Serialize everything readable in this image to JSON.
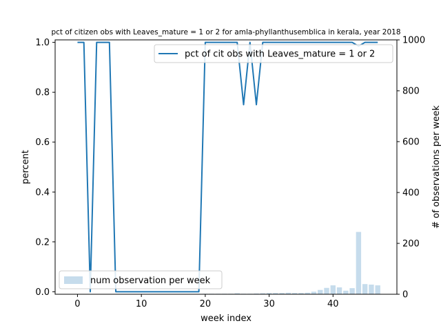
{
  "chart_data": {
    "type": "line",
    "title": "pct of citizen obs with Leaves_mature = 1 or 2 for amla-phyllanthusemblica in kerala, year 2018",
    "xlabel": "week index",
    "ylabel": "percent",
    "y2label": "# of observations per week",
    "xlim": [
      -3.5,
      50
    ],
    "ylim": [
      -0.01,
      1.01
    ],
    "y2lim": [
      0,
      1000
    ],
    "xticks": [
      0,
      10,
      20,
      30,
      40
    ],
    "yticks": [
      0.0,
      0.2,
      0.4,
      0.6,
      0.8,
      1.0
    ],
    "y2ticks": [
      0,
      200,
      400,
      600,
      800,
      1000
    ],
    "grid": false,
    "colors": {
      "line": "#1f77b4",
      "bars": "#c6dcec"
    },
    "series": [
      {
        "name": "pct of cit obs with Leaves_mature = 1 or 2",
        "axis": "left",
        "kind": "line",
        "x": [
          0,
          1,
          2,
          3,
          4,
          5,
          6,
          7,
          8,
          9,
          10,
          11,
          12,
          13,
          14,
          15,
          16,
          17,
          18,
          19,
          20,
          21,
          22,
          23,
          24,
          25,
          26,
          27,
          28,
          29,
          30,
          31,
          32,
          33,
          34,
          35,
          36,
          37,
          38,
          39,
          40,
          41,
          42,
          43,
          44,
          45,
          46,
          47
        ],
        "values": [
          1,
          1,
          0,
          1,
          1,
          1,
          0,
          0,
          0,
          0,
          0,
          0,
          0,
          0,
          0,
          0,
          0,
          0,
          0,
          0,
          1,
          1,
          1,
          1,
          1,
          1,
          0.75,
          1,
          0.75,
          1,
          1,
          1,
          1,
          1,
          1,
          1,
          1,
          1,
          1,
          1,
          1,
          1,
          1,
          1,
          0.985,
          1,
          1,
          1
        ]
      },
      {
        "name": "num observation per week",
        "axis": "right",
        "kind": "bar",
        "x": [
          0,
          1,
          2,
          3,
          4,
          5,
          6,
          7,
          8,
          9,
          10,
          11,
          12,
          13,
          14,
          15,
          16,
          17,
          18,
          19,
          20,
          21,
          22,
          23,
          24,
          25,
          26,
          27,
          28,
          29,
          30,
          31,
          32,
          33,
          34,
          35,
          36,
          37,
          38,
          39,
          40,
          41,
          42,
          43,
          44,
          45,
          46,
          47
        ],
        "values": [
          1,
          1,
          1,
          1,
          1,
          1,
          1,
          1,
          1,
          1,
          1,
          1,
          1,
          1,
          1,
          1,
          1,
          1,
          1,
          1,
          2,
          2,
          2,
          2,
          2,
          4,
          2,
          2,
          3,
          4,
          5,
          5,
          5,
          6,
          5,
          5,
          6,
          10,
          17,
          25,
          35,
          27,
          14,
          24,
          245,
          40,
          38,
          35
        ]
      }
    ],
    "legends": [
      {
        "position": "upper-right",
        "entry": "pct of cit obs with Leaves_mature = 1 or 2"
      },
      {
        "position": "lower-left",
        "entry": "num observation per week"
      }
    ]
  }
}
